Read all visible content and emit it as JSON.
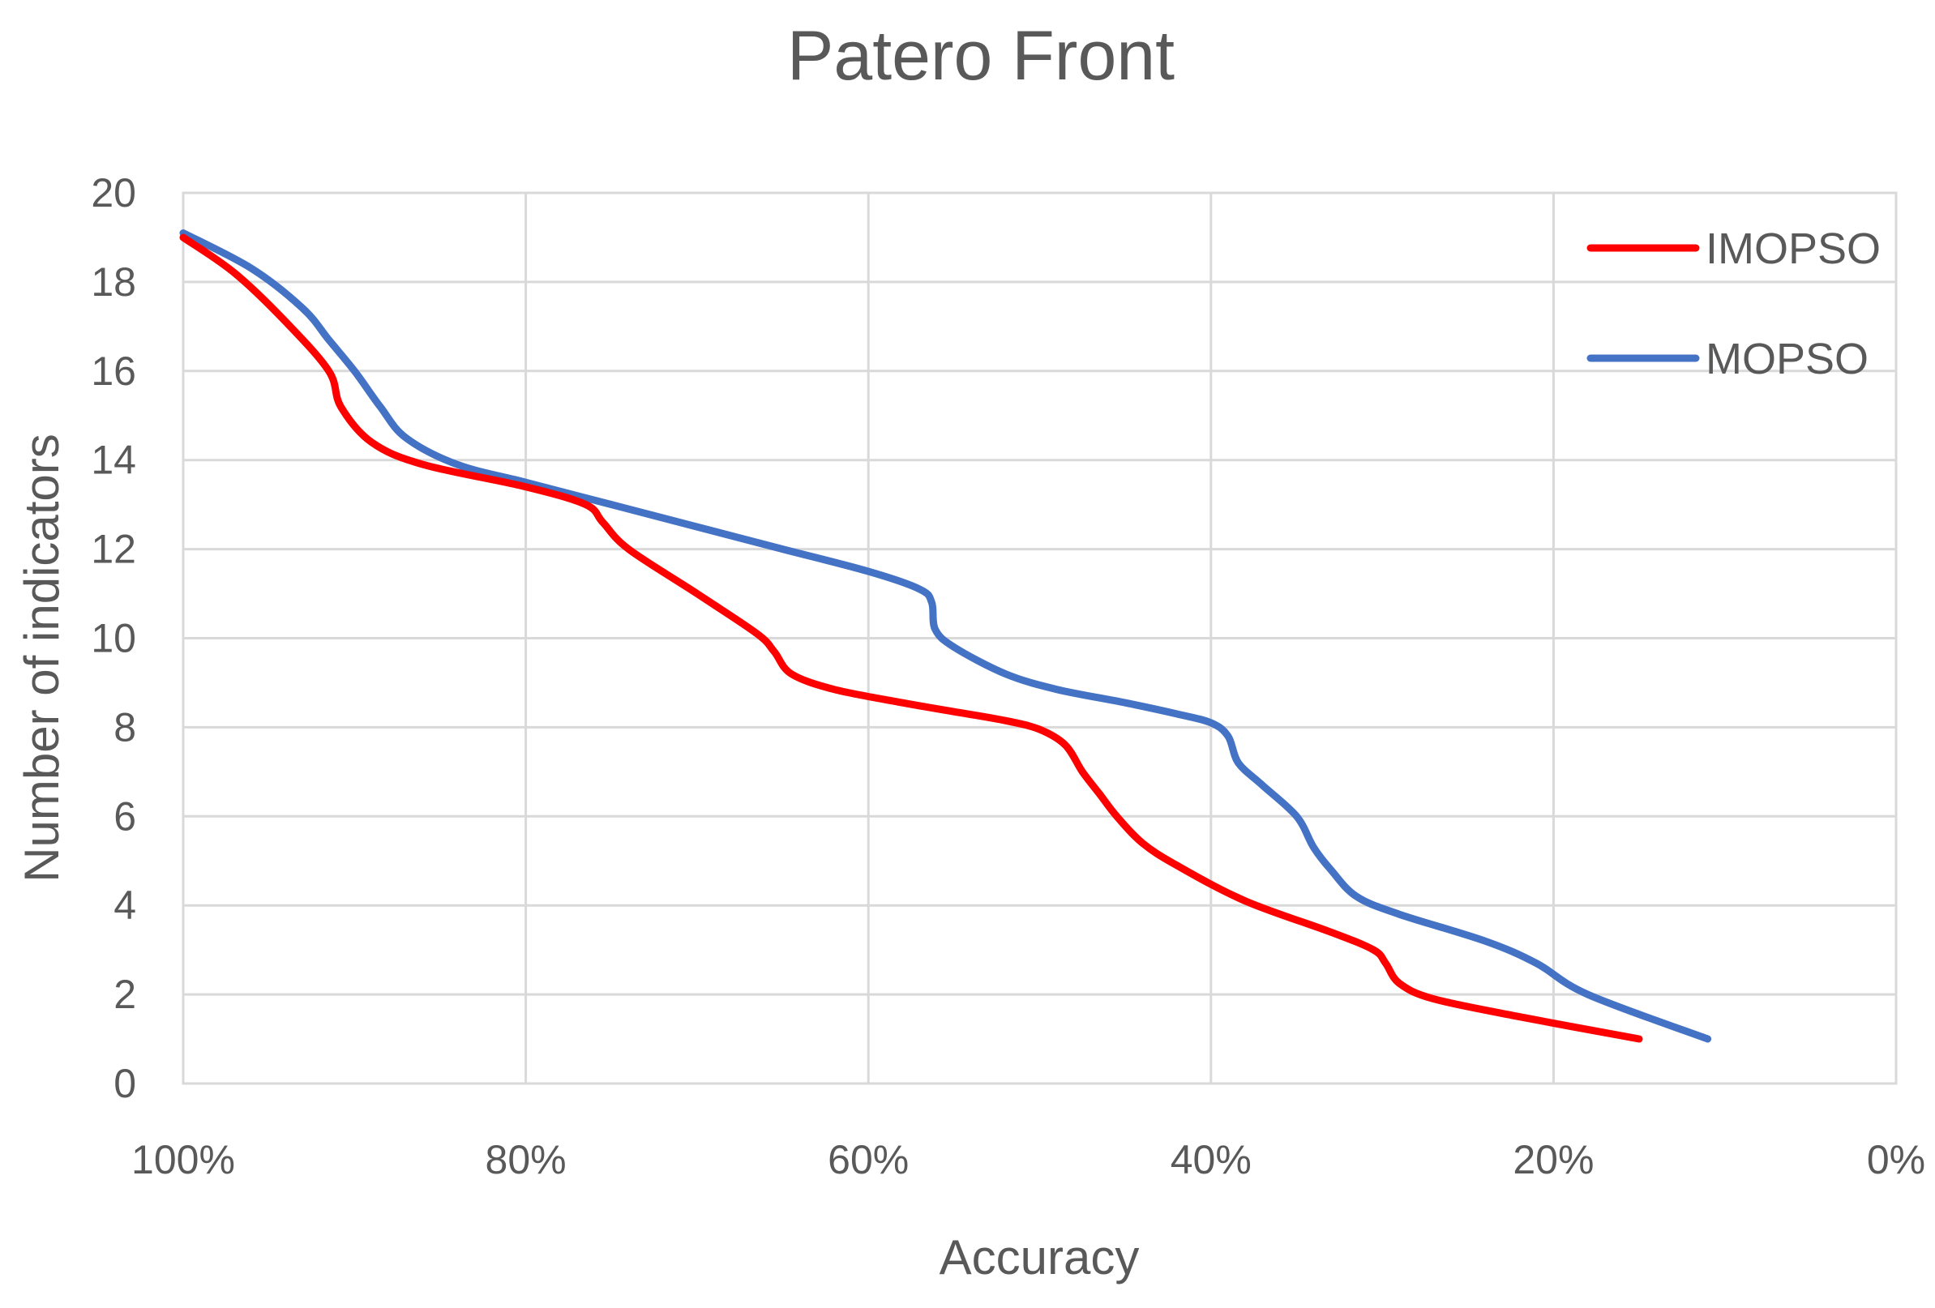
{
  "chart_data": {
    "type": "line",
    "title": "Patero Front",
    "xlabel": "Accuracy",
    "ylabel": "Number of indicators",
    "x_reversed": true,
    "xlim": [
      0,
      100
    ],
    "ylim": [
      0,
      20
    ],
    "x_ticks": [
      "100%",
      "80%",
      "60%",
      "40%",
      "20%",
      "0%"
    ],
    "y_ticks": [
      "0",
      "2",
      "4",
      "6",
      "8",
      "10",
      "12",
      "14",
      "16",
      "18",
      "20"
    ],
    "grid": true,
    "legend": "top-right",
    "series": [
      {
        "name": "IMOPSO",
        "color": "#ff0000",
        "points": [
          [
            100,
            19
          ],
          [
            97,
            18.2
          ],
          [
            94,
            17.1
          ],
          [
            91.5,
            16
          ],
          [
            90.8,
            15.2
          ],
          [
            89,
            14.4
          ],
          [
            86,
            13.9
          ],
          [
            80,
            13.4
          ],
          [
            76.5,
            13
          ],
          [
            75.5,
            12.6
          ],
          [
            74,
            12
          ],
          [
            70,
            11
          ],
          [
            66.5,
            10.1
          ],
          [
            65.5,
            9.7
          ],
          [
            64.5,
            9.2
          ],
          [
            62,
            8.85
          ],
          [
            58,
            8.55
          ],
          [
            55,
            8.35
          ],
          [
            52,
            8.15
          ],
          [
            50,
            7.95
          ],
          [
            48.5,
            7.6
          ],
          [
            47.5,
            7
          ],
          [
            46.5,
            6.5
          ],
          [
            45.5,
            6
          ],
          [
            44,
            5.4
          ],
          [
            42,
            4.9
          ],
          [
            38,
            4.1
          ],
          [
            33,
            3.4
          ],
          [
            30.5,
            3
          ],
          [
            29.8,
            2.7
          ],
          [
            29,
            2.25
          ],
          [
            27,
            1.9
          ],
          [
            22,
            1.5
          ],
          [
            15,
            1
          ]
        ]
      },
      {
        "name": "MOPSO",
        "color": "#4472c4",
        "points": [
          [
            100,
            19.1
          ],
          [
            96,
            18.3
          ],
          [
            93,
            17.4
          ],
          [
            91.5,
            16.7
          ],
          [
            90,
            16
          ],
          [
            88.5,
            15.2
          ],
          [
            87,
            14.5
          ],
          [
            84,
            13.9
          ],
          [
            80,
            13.5
          ],
          [
            75,
            13
          ],
          [
            70,
            12.5
          ],
          [
            65,
            12
          ],
          [
            60,
            11.5
          ],
          [
            57,
            11.1
          ],
          [
            56.3,
            10.8
          ],
          [
            56.1,
            10.2
          ],
          [
            55,
            9.8
          ],
          [
            52,
            9.2
          ],
          [
            49,
            8.85
          ],
          [
            45,
            8.55
          ],
          [
            42,
            8.3
          ],
          [
            40,
            8.1
          ],
          [
            39,
            7.8
          ],
          [
            38.4,
            7.2
          ],
          [
            37,
            6.7
          ],
          [
            35,
            6
          ],
          [
            34,
            5.3
          ],
          [
            33,
            4.8
          ],
          [
            31.5,
            4.2
          ],
          [
            29,
            3.8
          ],
          [
            24,
            3.2
          ],
          [
            21,
            2.7
          ],
          [
            18,
            2
          ],
          [
            11,
            1
          ]
        ]
      }
    ]
  }
}
